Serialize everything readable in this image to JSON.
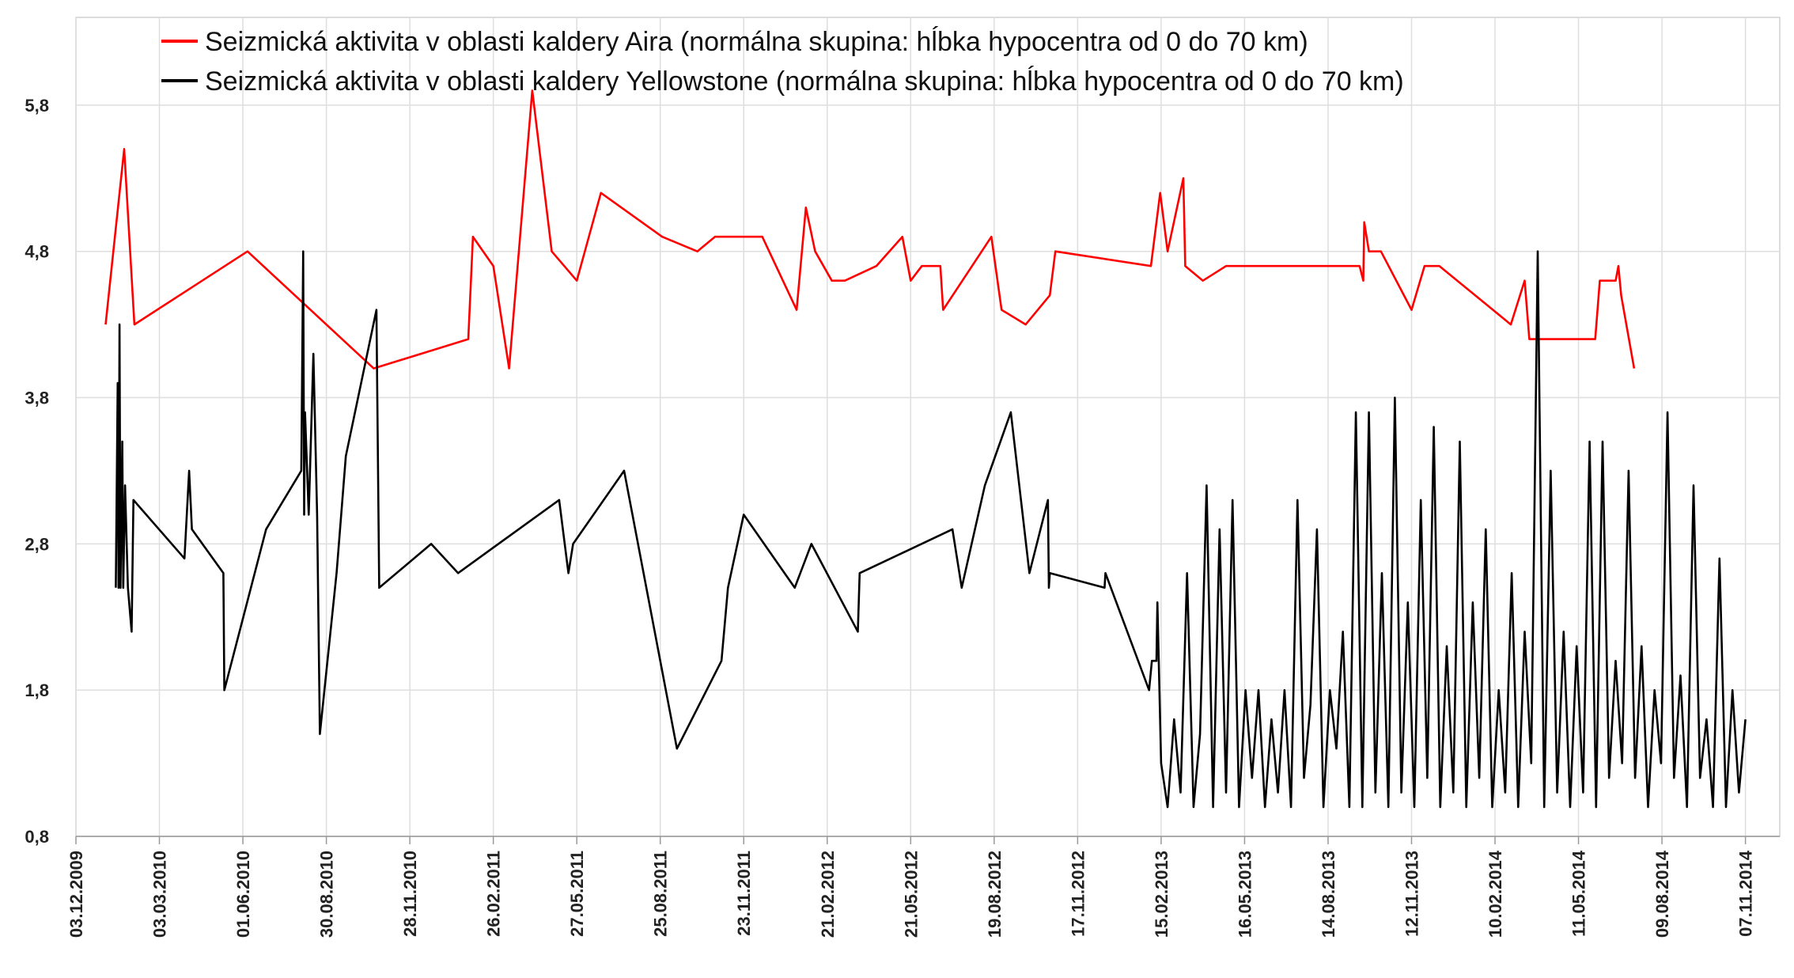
{
  "chart_data": {
    "type": "line",
    "legend": "upper left",
    "grid": true,
    "xlim": [
      "03.12.2009",
      "14.12.2014"
    ],
    "xticks": [
      "03.12.2009",
      "03.03.2010",
      "01.06.2010",
      "30.08.2010",
      "28.11.2010",
      "26.02.2011",
      "27.05.2011",
      "25.08.2011",
      "23.11.2011",
      "21.02.2012",
      "21.05.2012",
      "19.08.2012",
      "17.11.2012",
      "15.02.2013",
      "16.05.2013",
      "14.08.2013",
      "12.11.2013",
      "10.02.2014",
      "11.05.2014",
      "09.08.2014",
      "07.11.2014"
    ],
    "ylim": [
      0.8,
      6.4
    ],
    "yticks": [
      {
        "value": 0.8,
        "label": "0,8"
      },
      {
        "value": 1.8,
        "label": "1,8"
      },
      {
        "value": 2.8,
        "label": "2,8"
      },
      {
        "value": 3.8,
        "label": "3,8"
      },
      {
        "value": 4.8,
        "label": "4,8"
      },
      {
        "value": 5.8,
        "label": "5,8"
      }
    ],
    "series": [
      {
        "name": "Seizmická aktivita v oblasti kaldery Aira (normálna skupina: hĺbka hypocentra od 0 do 70 km)",
        "color": "#ff0000",
        "x": [
          "04.01.2010",
          "24.01.2010",
          "04.02.2010",
          "06.06.2010",
          "20.10.2010",
          "30.01.2011",
          "04.02.2011",
          "26.02.2011",
          "15.03.2011",
          "09.04.2011",
          "30.04.2011",
          "27.05.2011",
          "22.06.2011",
          "27.08.2011",
          "04.10.2011",
          "23.10.2011",
          "13.12.2011",
          "19.01.2012",
          "29.01.2012",
          "08.02.2012",
          "26.02.2012",
          "11.03.2012",
          "14.04.2012",
          "12.05.2012",
          "21.05.2012",
          "02.06.2012",
          "22.06.2012",
          "25.06.2012",
          "16.08.2012",
          "27.08.2012",
          "22.09.2012",
          "18.10.2012",
          "24.10.2012",
          "04.02.2013",
          "14.02.2013",
          "22.02.2013",
          "11.03.2013",
          "13.03.2013",
          "01.04.2013",
          "26.04.2013",
          "17.09.2013",
          "21.09.2013",
          "22.09.2013",
          "27.09.2013",
          "10.10.2013",
          "12.11.2013",
          "26.11.2013",
          "12.12.2013",
          "27.02.2014",
          "14.03.2014",
          "19.03.2014",
          "29.05.2014",
          "03.06.2014",
          "20.06.2014",
          "23.06.2014",
          "26.06.2014",
          "10.07.2014"
        ],
        "values": [
          4.3,
          5.5,
          4.3,
          4.8,
          4.0,
          4.2,
          4.9,
          4.7,
          4.0,
          5.9,
          4.8,
          4.6,
          5.2,
          4.9,
          4.8,
          4.9,
          4.9,
          4.4,
          5.1,
          4.8,
          4.6,
          4.6,
          4.7,
          4.9,
          4.6,
          4.7,
          4.7,
          4.4,
          4.9,
          4.4,
          4.3,
          4.5,
          4.8,
          4.7,
          5.2,
          4.8,
          5.3,
          4.7,
          4.6,
          4.7,
          4.7,
          4.6,
          5.0,
          4.8,
          4.8,
          4.4,
          4.7,
          4.7,
          4.3,
          4.6,
          4.2,
          4.2,
          4.6,
          4.6,
          4.7,
          4.5,
          4.0
        ]
      },
      {
        "name": "Seizmická aktivita v oblasti kaldery Yellowstone (normálna skupina: hĺbka hypocentra od 0 do 70 km)",
        "color": "#000000",
        "x": [
          "15.01.2010",
          "17.01.2010",
          "18.01.2010",
          "19.01.2010",
          "20.01.2010",
          "22.01.2010",
          "23.01.2010",
          "25.01.2010",
          "28.01.2010",
          "01.02.2010",
          "03.02.2010",
          "30.03.2010",
          "04.04.2010",
          "07.04.2010",
          "11.05.2010",
          "12.05.2010",
          "26.06.2010",
          "03.08.2010",
          "05.08.2010",
          "06.08.2010",
          "07.08.2010",
          "11.08.2010",
          "16.08.2010",
          "20.08.2010",
          "23.08.2010",
          "10.09.2010",
          "20.09.2010",
          "23.10.2010",
          "26.10.2010",
          "21.12.2010",
          "19.01.2011",
          "08.05.2011",
          "18.05.2011",
          "23.05.2011",
          "17.07.2011",
          "12.09.2011",
          "30.10.2011",
          "06.11.2011",
          "23.11.2011",
          "17.01.2012",
          "04.02.2012",
          "25.03.2012",
          "27.03.2012",
          "05.07.2012",
          "15.07.2012",
          "09.08.2012",
          "06.09.2012",
          "26.09.2012",
          "16.10.2012",
          "17.10.2012",
          "18.10.2012",
          "16.12.2012",
          "17.12.2012",
          "02.02.2013",
          "05.02.2013",
          "10.02.2013",
          "11.02.2013",
          "15.02.2013",
          "22.02.2013",
          "01.03.2013",
          "08.03.2013",
          "15.03.2013",
          "22.03.2013",
          "29.03.2013",
          "05.04.2013",
          "12.04.2013",
          "19.04.2013",
          "26.04.2013",
          "03.05.2013",
          "10.05.2013",
          "17.05.2013",
          "24.05.2013",
          "31.05.2013",
          "07.06.2013",
          "14.06.2013",
          "21.06.2013",
          "28.06.2013",
          "05.07.2013",
          "12.07.2013",
          "19.07.2013",
          "26.07.2013",
          "02.08.2013",
          "09.08.2013",
          "16.08.2013",
          "23.08.2013",
          "30.08.2013",
          "06.09.2013",
          "13.09.2013",
          "20.09.2013",
          "27.09.2013",
          "04.10.2013",
          "11.10.2013",
          "18.10.2013",
          "25.10.2013",
          "01.11.2013",
          "08.11.2013",
          "15.11.2013",
          "22.11.2013",
          "29.11.2013",
          "06.12.2013",
          "13.12.2013",
          "20.12.2013",
          "27.12.2013",
          "03.01.2014",
          "10.01.2014",
          "17.01.2014",
          "24.01.2014",
          "31.01.2014",
          "07.02.2014",
          "14.02.2014",
          "21.02.2014",
          "28.02.2014",
          "07.03.2014",
          "14.03.2014",
          "21.03.2014",
          "28.03.2014",
          "04.04.2014",
          "11.04.2014",
          "18.04.2014",
          "25.04.2014",
          "02.05.2014",
          "09.05.2014",
          "16.05.2014",
          "23.05.2014",
          "30.05.2014",
          "06.06.2014",
          "13.06.2014",
          "20.06.2014",
          "27.06.2014",
          "04.07.2014",
          "11.07.2014",
          "18.07.2014",
          "25.07.2014",
          "01.08.2014",
          "08.08.2014",
          "15.08.2014",
          "22.08.2014",
          "29.08.2014",
          "05.09.2014",
          "12.09.2014",
          "19.09.2014",
          "26.09.2014",
          "03.10.2014",
          "10.10.2014",
          "17.10.2014",
          "24.10.2014",
          "31.10.2014",
          "07.11.2014"
        ],
        "values": [
          2.5,
          3.9,
          2.5,
          4.3,
          2.5,
          3.5,
          2.5,
          3.2,
          2.5,
          2.2,
          3.1,
          2.7,
          3.3,
          2.9,
          2.6,
          1.8,
          2.9,
          3.3,
          4.8,
          3.0,
          3.7,
          3.0,
          4.1,
          3.0,
          1.5,
          2.6,
          3.4,
          4.4,
          2.5,
          2.8,
          2.6,
          3.1,
          2.6,
          2.8,
          3.3,
          1.4,
          2.0,
          2.5,
          3.0,
          2.5,
          2.8,
          2.2,
          2.6,
          2.9,
          2.5,
          3.2,
          3.7,
          2.6,
          3.1,
          2.5,
          2.6,
          2.5,
          2.6,
          1.8,
          2.0,
          2.0,
          2.4,
          1.3,
          1.0,
          1.6,
          1.1,
          2.6,
          1.0,
          1.5,
          3.2,
          1.0,
          2.9,
          1.1,
          3.1,
          1.0,
          1.8,
          1.2,
          1.8,
          1.0,
          1.6,
          1.1,
          1.8,
          1.0,
          3.1,
          1.2,
          1.7,
          2.9,
          1.0,
          1.8,
          1.4,
          2.2,
          1.0,
          3.7,
          1.0,
          3.7,
          1.1,
          2.6,
          1.0,
          3.8,
          1.1,
          2.4,
          1.0,
          3.1,
          1.2,
          3.6,
          1.0,
          2.1,
          1.1,
          3.5,
          1.0,
          2.4,
          1.2,
          2.9,
          1.0,
          1.8,
          1.1,
          2.6,
          1.0,
          2.2,
          1.3,
          4.8,
          1.0,
          3.3,
          1.1,
          2.2,
          1.0,
          2.1,
          1.1,
          3.5,
          1.0,
          3.5,
          1.2,
          2.0,
          1.3,
          3.3,
          1.2,
          2.1,
          1.0,
          1.8,
          1.3,
          3.7,
          1.2,
          1.9,
          1.0,
          3.2,
          1.2,
          1.6,
          1.0,
          2.7,
          1.0,
          1.8,
          1.1,
          1.6
        ]
      }
    ]
  }
}
